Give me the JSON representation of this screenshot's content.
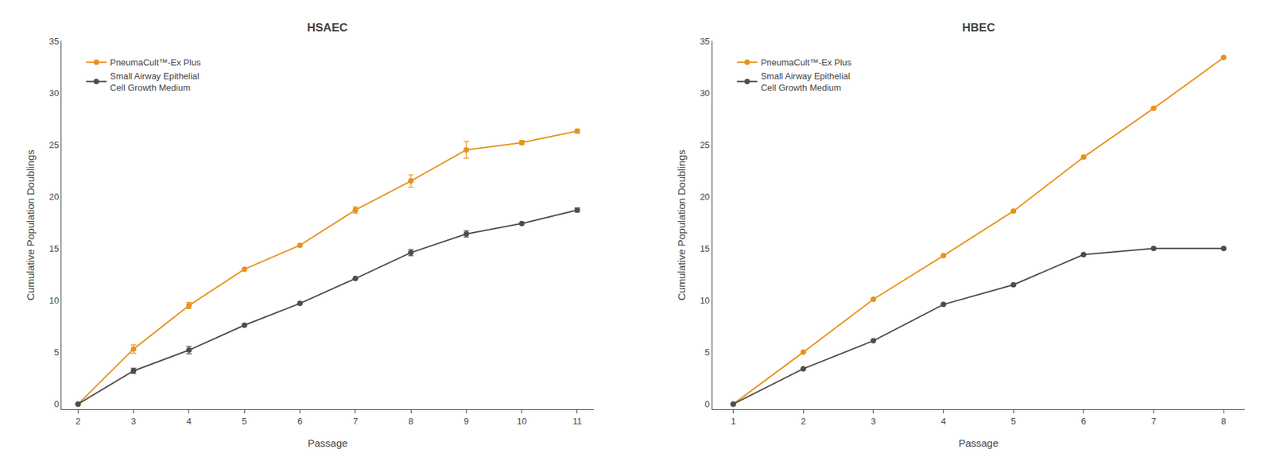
{
  "chart_data": [
    {
      "type": "line",
      "title": "HSAEC",
      "x_label": "Passage",
      "y_label": "Cumulative Population Doublings",
      "x": [
        2,
        3,
        4,
        5,
        6,
        7,
        8,
        9,
        10,
        11
      ],
      "xlim": [
        1.7,
        11.3
      ],
      "xticks": [
        2,
        3,
        4,
        5,
        6,
        7,
        8,
        9,
        10,
        11
      ],
      "ylim": [
        -0.5,
        35
      ],
      "yticks": [
        0,
        5,
        10,
        15,
        20,
        25,
        30,
        35
      ],
      "grid": false,
      "legend": "upper left",
      "marker": "circle",
      "line_style": "solid",
      "series": [
        {
          "name": "PneumaCult™-Ex Plus",
          "color": "#E8921A",
          "values": [
            0.0,
            5.3,
            9.5,
            13.0,
            15.3,
            18.7,
            21.5,
            24.5,
            25.2,
            26.3
          ],
          "yerr": [
            0.0,
            0.4,
            0.3,
            0.0,
            0.0,
            0.3,
            0.6,
            0.8,
            0.2,
            0.2
          ]
        },
        {
          "name": "Small Airway Epithelial\nCell Growth Medium",
          "color": "#4d4d4d",
          "values": [
            0.0,
            3.2,
            5.2,
            7.6,
            9.7,
            12.1,
            14.6,
            16.4,
            17.4,
            18.7
          ],
          "yerr": [
            0.0,
            0.25,
            0.35,
            0.0,
            0.0,
            0.0,
            0.3,
            0.3,
            0.0,
            0.2
          ]
        }
      ]
    },
    {
      "type": "line",
      "title": "HBEC",
      "x_label": "Passage",
      "y_label": "Cumulative Population Doublings",
      "x": [
        1,
        2,
        3,
        4,
        5,
        6,
        7,
        8
      ],
      "xlim": [
        0.7,
        8.3
      ],
      "xticks": [
        1,
        2,
        3,
        4,
        5,
        6,
        7,
        8
      ],
      "ylim": [
        -0.5,
        35
      ],
      "yticks": [
        0,
        5,
        10,
        15,
        20,
        25,
        30,
        35
      ],
      "grid": false,
      "legend": "upper left",
      "marker": "circle",
      "line_style": "solid",
      "series": [
        {
          "name": "PneumaCult™-Ex Plus",
          "color": "#E8921A",
          "values": [
            0.0,
            5.0,
            10.1,
            14.3,
            18.6,
            23.8,
            28.5,
            33.4
          ],
          "yerr": [
            0.0,
            0.0,
            0.0,
            0.0,
            0.0,
            0.0,
            0.0,
            0.0
          ]
        },
        {
          "name": "Small Airway Epithelial\nCell Growth Medium",
          "color": "#4d4d4d",
          "values": [
            0.0,
            3.4,
            6.1,
            9.6,
            11.5,
            14.4,
            15.0,
            15.0
          ],
          "yerr": [
            0.0,
            0.0,
            0.0,
            0.0,
            0.0,
            0.0,
            0.0,
            0.0
          ]
        }
      ]
    }
  ]
}
